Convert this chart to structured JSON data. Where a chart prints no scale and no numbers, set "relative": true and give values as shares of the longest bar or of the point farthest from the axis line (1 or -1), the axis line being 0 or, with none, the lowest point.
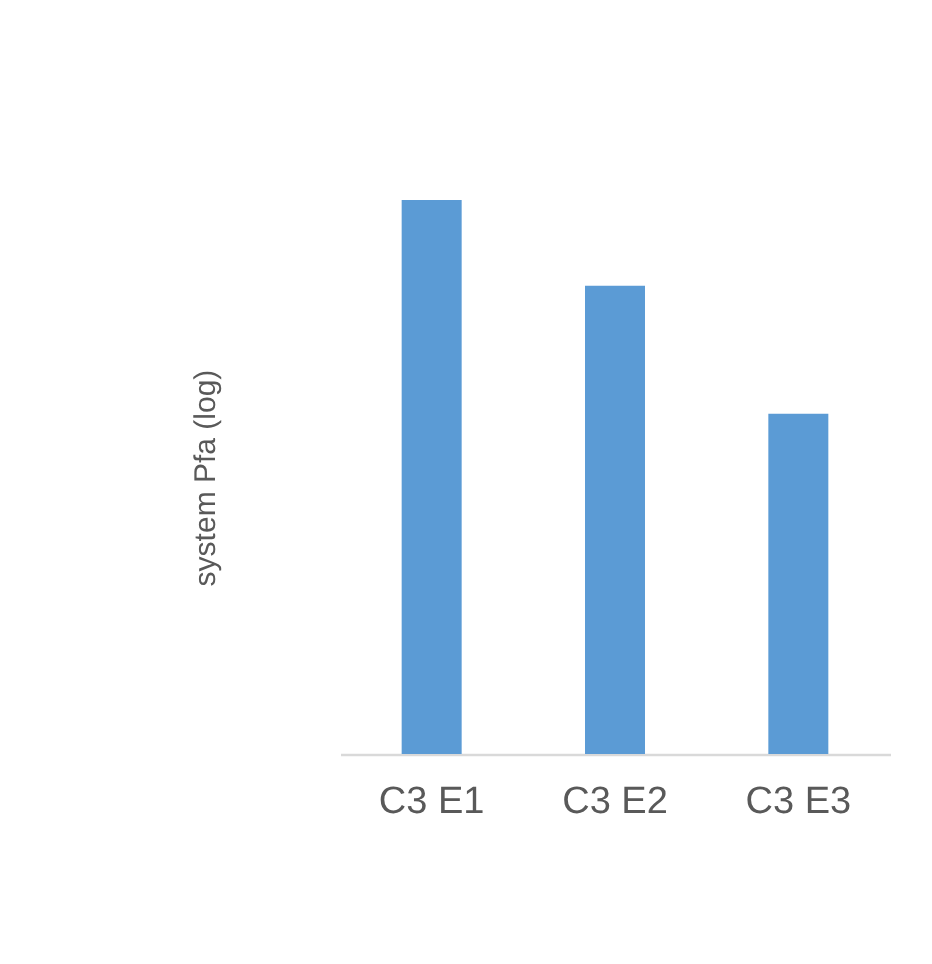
{
  "chart_data": {
    "type": "bar",
    "ylabel": "system Pfa (log)",
    "categories": [
      "C3 E1",
      "C3 E2",
      "C3 E3"
    ],
    "values": [
      1,
      0.845,
      0.614
    ],
    "color": "#5b9bd5",
    "relative": true
  }
}
